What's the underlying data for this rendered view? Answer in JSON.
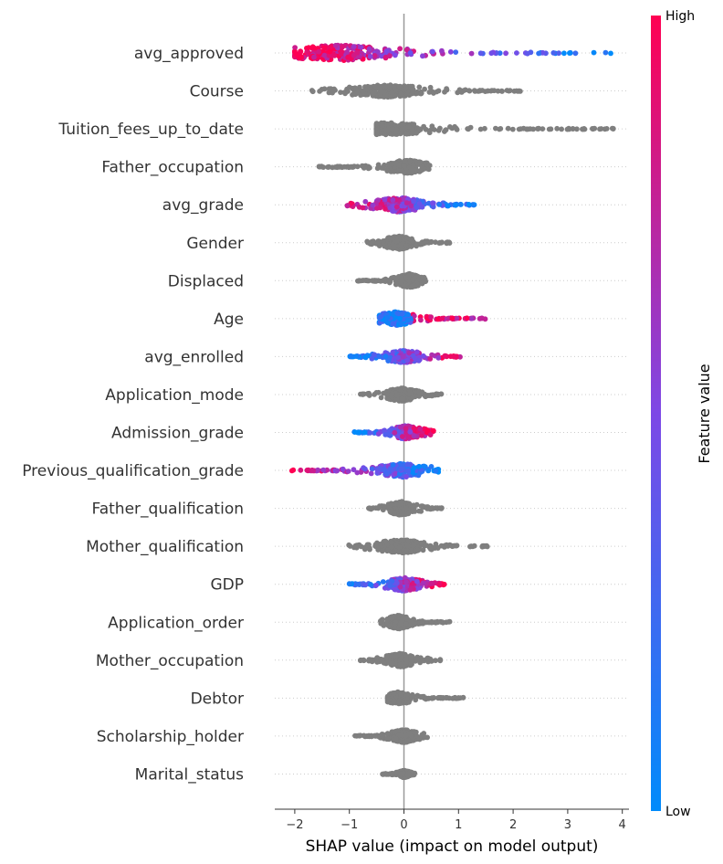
{
  "chart_data": {
    "type": "scatter",
    "subtype": "shap-beeswarm",
    "xlabel": "SHAP value (impact on model output)",
    "xlim": [
      -2.4,
      4.15
    ],
    "xticks": [
      -2,
      -1,
      0,
      1,
      2,
      3,
      4
    ],
    "grid": false,
    "colorbar": {
      "label": "Feature value",
      "high_label": "High",
      "low_label": "Low",
      "low_color": "#008bfb",
      "high_color": "#ff0052"
    },
    "neutral_color": "#7f7f7f",
    "features": [
      {
        "name": "avg_approved",
        "colored": true,
        "min": -2.0,
        "max": 3.8,
        "spread": 0.48,
        "peak": -1.2
      },
      {
        "name": "Course",
        "colored": false,
        "min": -1.7,
        "max": 2.15,
        "spread": 0.38,
        "peak": -0.3
      },
      {
        "name": "Tuition_fees_up_to_date",
        "colored": false,
        "min": -0.5,
        "max": 3.85,
        "spread": 0.38,
        "peak": -0.3
      },
      {
        "name": "Father_occupation",
        "colored": false,
        "min": -1.6,
        "max": 0.5,
        "spread": 0.42,
        "peak": 0.05
      },
      {
        "name": "avg_grade",
        "colored": true,
        "min": -1.1,
        "max": 1.35,
        "spread": 0.45,
        "peak": -0.1
      },
      {
        "name": "Gender",
        "colored": false,
        "min": -0.7,
        "max": 0.85,
        "spread": 0.42,
        "peak": -0.1
      },
      {
        "name": "Displaced",
        "colored": false,
        "min": -0.85,
        "max": 0.4,
        "spread": 0.42,
        "peak": 0.1
      },
      {
        "name": "Age",
        "colored": true,
        "min": -0.45,
        "max": 1.5,
        "spread": 0.42,
        "peak": -0.15
      },
      {
        "name": "avg_enrolled",
        "colored": true,
        "min": -1.0,
        "max": 1.05,
        "spread": 0.38,
        "peak": 0.0
      },
      {
        "name": "Application_mode",
        "colored": false,
        "min": -0.85,
        "max": 0.7,
        "spread": 0.42,
        "peak": -0.05
      },
      {
        "name": "Admission_grade",
        "colored": true,
        "min": -0.95,
        "max": 0.55,
        "spread": 0.42,
        "peak": 0.05
      },
      {
        "name": "Previous_qualification_grade",
        "colored": true,
        "min": -2.1,
        "max": 0.8,
        "spread": 0.42,
        "peak": -0.05
      },
      {
        "name": "Father_qualification",
        "colored": false,
        "min": -0.65,
        "max": 0.75,
        "spread": 0.42,
        "peak": -0.05
      },
      {
        "name": "Mother_qualification",
        "colored": false,
        "min": -1.05,
        "max": 1.55,
        "spread": 0.42,
        "peak": -0.05
      },
      {
        "name": "GDP",
        "colored": true,
        "min": -1.0,
        "max": 0.75,
        "spread": 0.42,
        "peak": 0.0
      },
      {
        "name": "Application_order",
        "colored": false,
        "min": -0.45,
        "max": 0.85,
        "spread": 0.42,
        "peak": -0.1
      },
      {
        "name": "Mother_occupation",
        "colored": false,
        "min": -0.8,
        "max": 0.7,
        "spread": 0.42,
        "peak": -0.05
      },
      {
        "name": "Debtor",
        "colored": false,
        "min": -0.3,
        "max": 1.1,
        "spread": 0.38,
        "peak": -0.1
      },
      {
        "name": "Scholarship_holder",
        "colored": false,
        "min": -0.9,
        "max": 0.45,
        "spread": 0.4,
        "peak": 0.0
      },
      {
        "name": "Marital_status",
        "colored": false,
        "min": -0.4,
        "max": 0.2,
        "spread": 0.22,
        "peak": 0.0
      }
    ]
  }
}
